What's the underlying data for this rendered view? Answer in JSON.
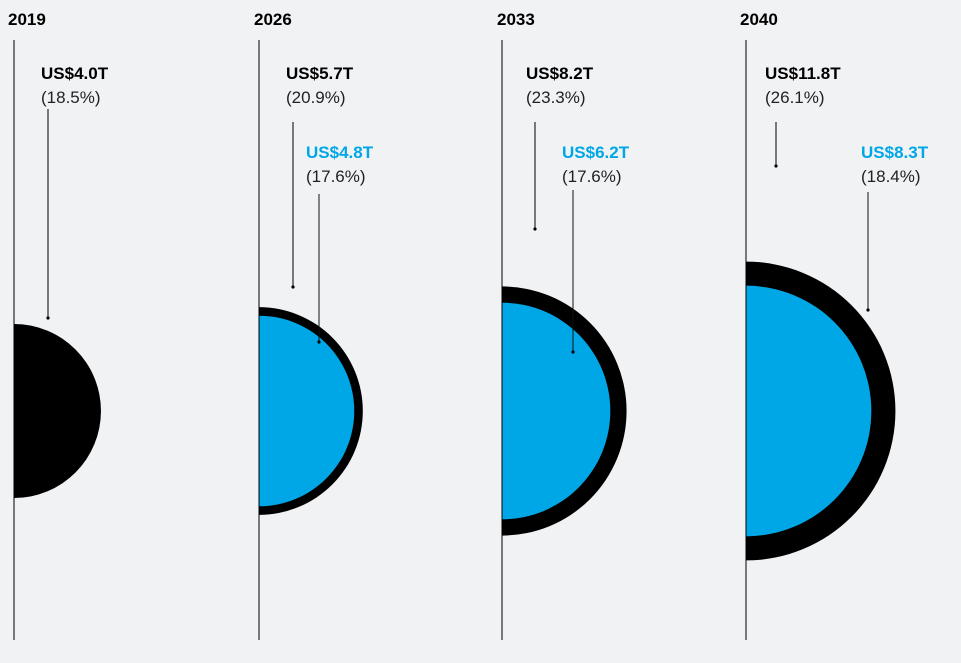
{
  "chart_data": {
    "type": "semicircle-area",
    "colors": {
      "primary": "#000000",
      "secondary": "#00a7e7",
      "background": "#f1f2f4"
    },
    "periods": [
      {
        "year": "2019",
        "series": [
          {
            "value": 4.0,
            "label": "US$4.0T",
            "share": "(18.5%)",
            "color": "#000000"
          }
        ]
      },
      {
        "year": "2026",
        "series": [
          {
            "value": 5.7,
            "label": "US$5.7T",
            "share": "(20.9%)",
            "color": "#000000"
          },
          {
            "value": 4.8,
            "label": "US$4.8T",
            "share": "(17.6%)",
            "color": "#00a7e7"
          }
        ]
      },
      {
        "year": "2033",
        "series": [
          {
            "value": 8.2,
            "label": "US$8.2T",
            "share": "(23.3%)",
            "color": "#000000"
          },
          {
            "value": 6.2,
            "label": "US$6.2T",
            "share": "(17.6%)",
            "color": "#00a7e7"
          }
        ]
      },
      {
        "year": "2040",
        "series": [
          {
            "value": 11.8,
            "label": "US$11.8T",
            "share": "(26.1%)",
            "color": "#000000"
          },
          {
            "value": 8.3,
            "label": "US$8.3T",
            "share": "(18.4%)",
            "color": "#00a7e7"
          }
        ]
      }
    ]
  }
}
